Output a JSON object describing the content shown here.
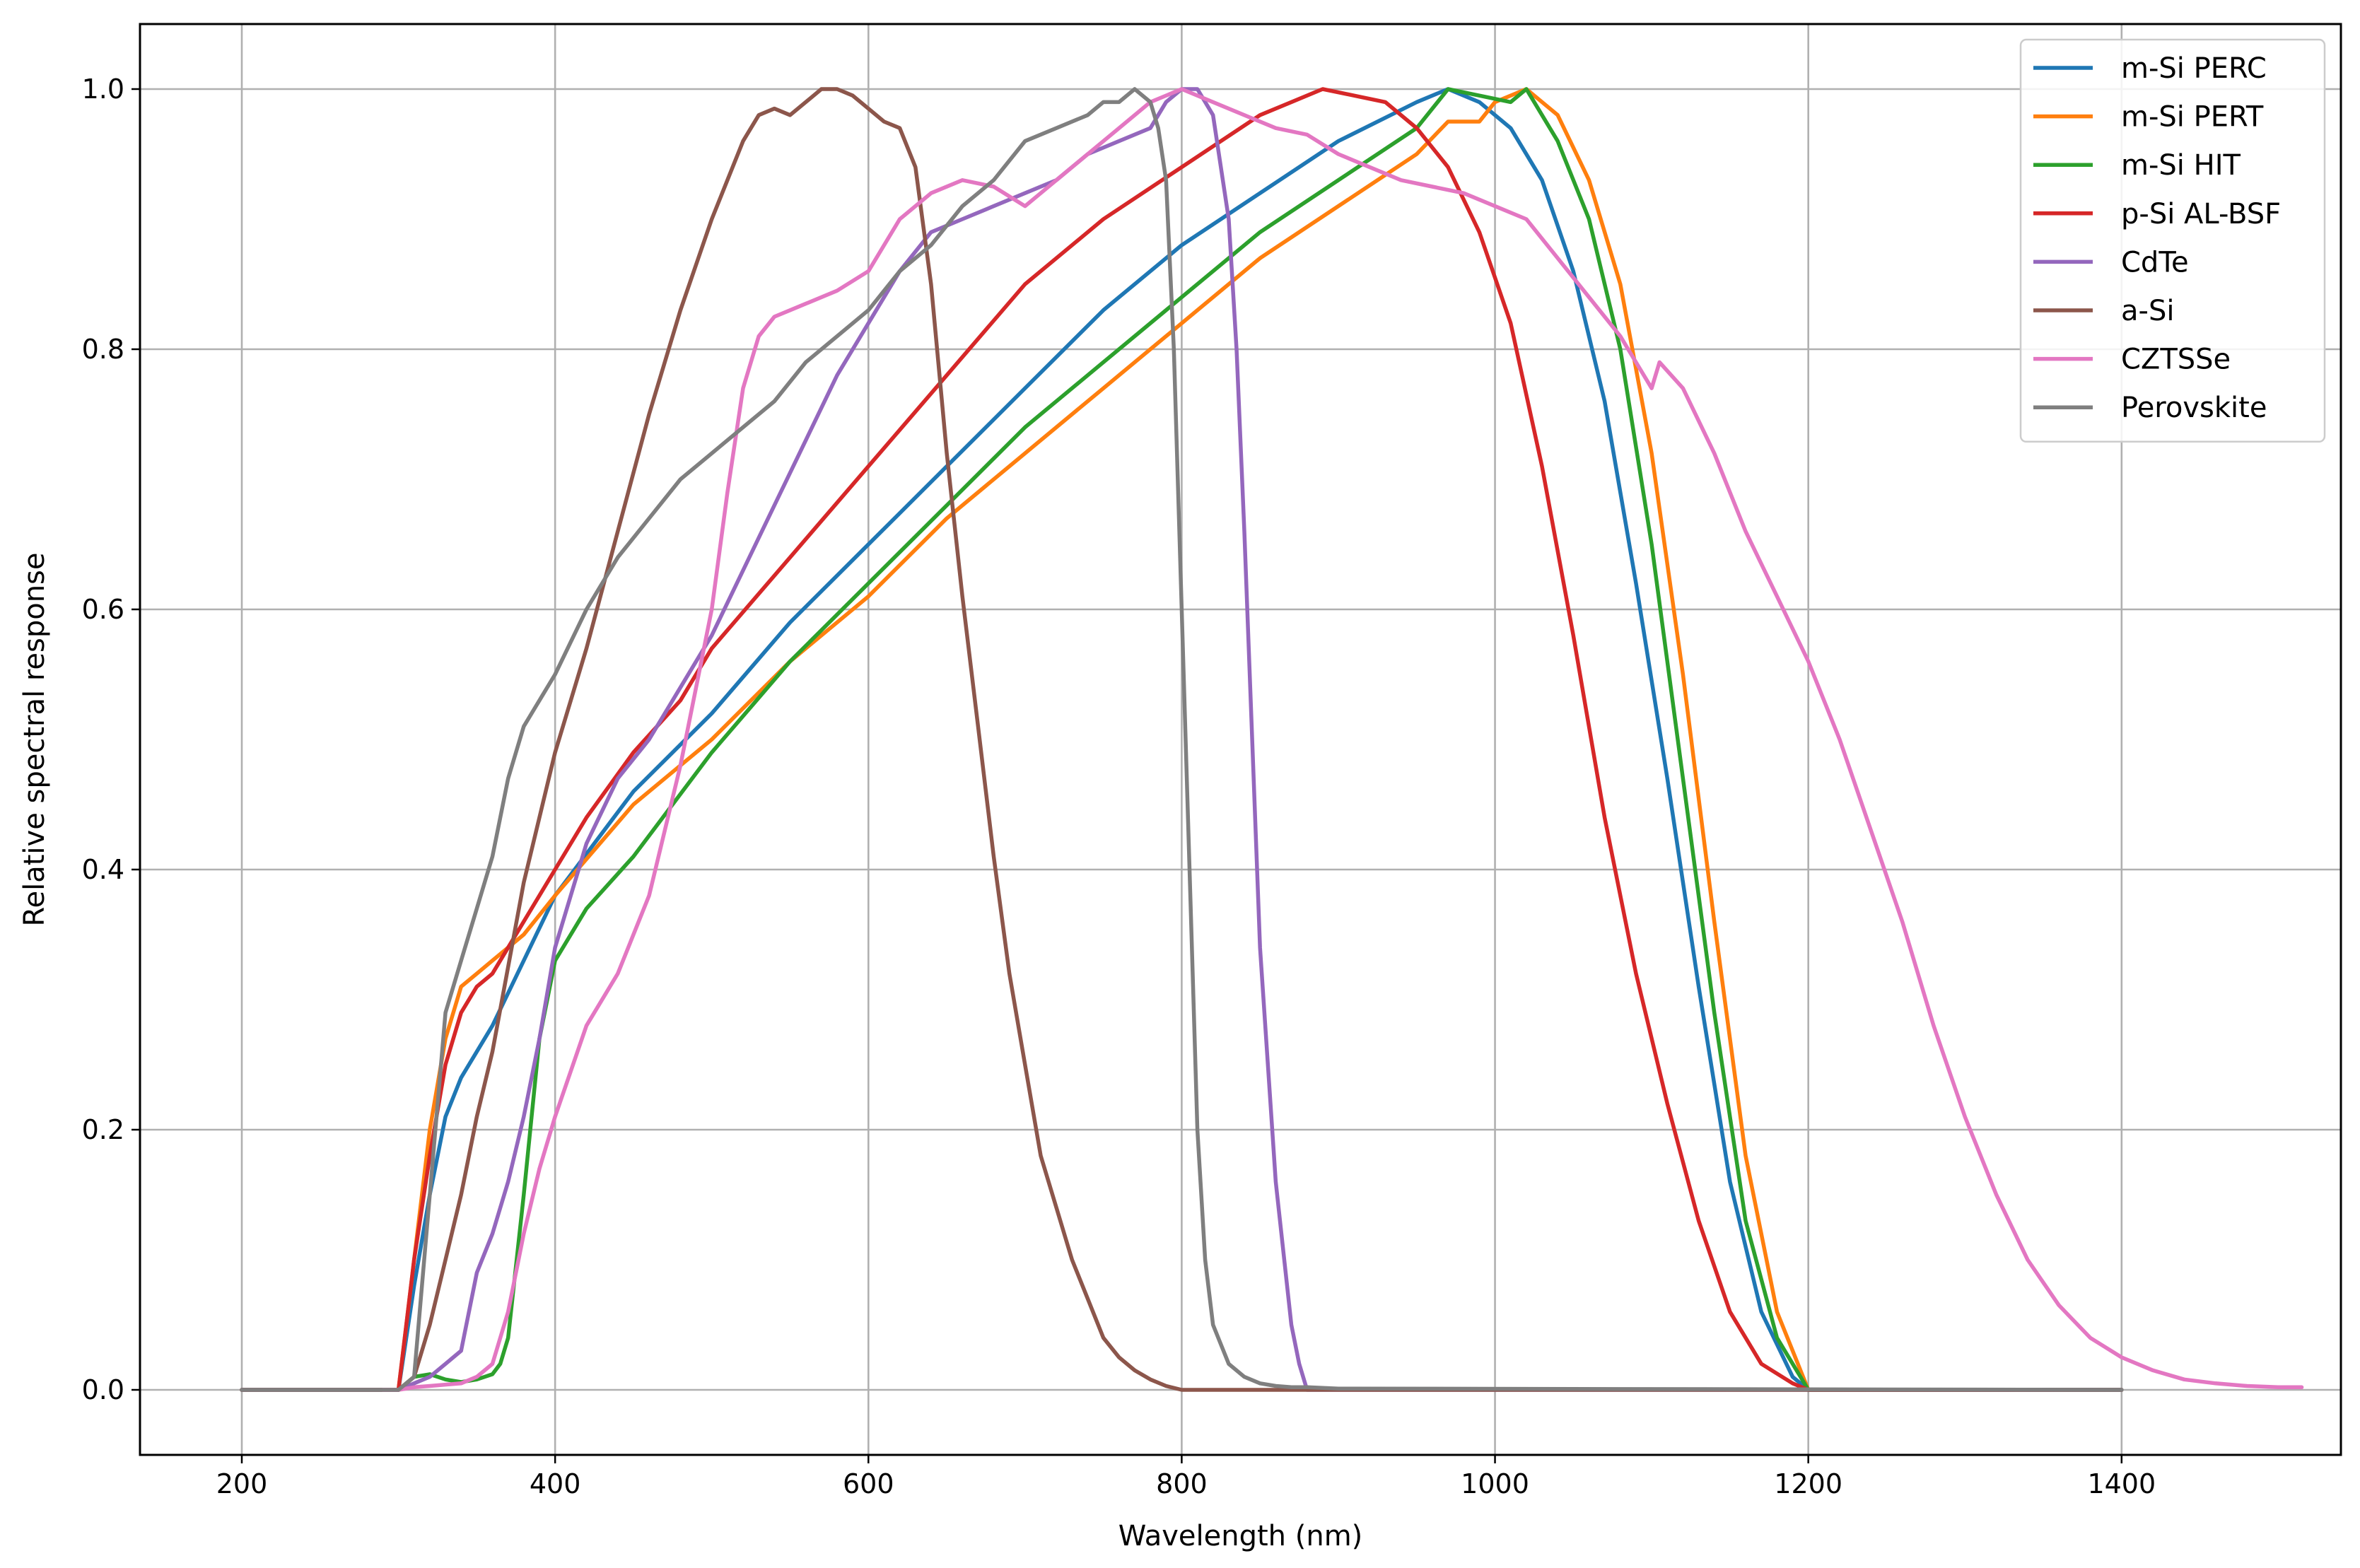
{
  "chart_data": {
    "type": "line",
    "title": "",
    "xlabel": "Wavelength (nm)",
    "ylabel": "Relative spectral response",
    "xlim": [
      135,
      1540
    ],
    "ylim": [
      -0.05,
      1.05
    ],
    "xticks": [
      200,
      400,
      600,
      800,
      1000,
      1200,
      1400
    ],
    "xtick_labels": [
      "200",
      "400",
      "600",
      "800",
      "1000",
      "1200",
      "1400"
    ],
    "yticks": [
      0.0,
      0.2,
      0.4,
      0.6,
      0.8,
      1.0
    ],
    "ytick_labels": [
      "0.0",
      "0.2",
      "0.4",
      "0.6",
      "0.8",
      "1.0"
    ],
    "grid": true,
    "legend_position": "top-right",
    "series": [
      {
        "name": "m-Si PERC",
        "color": "#1f77b4",
        "x": [
          200,
          290,
          300,
          310,
          320,
          330,
          340,
          350,
          360,
          380,
          400,
          450,
          500,
          550,
          600,
          650,
          700,
          750,
          800,
          850,
          900,
          950,
          970,
          990,
          1010,
          1030,
          1050,
          1070,
          1090,
          1110,
          1130,
          1150,
          1170,
          1190,
          1200,
          1400
        ],
        "y": [
          0,
          0,
          0,
          0.08,
          0.15,
          0.21,
          0.24,
          0.26,
          0.28,
          0.33,
          0.38,
          0.46,
          0.52,
          0.59,
          0.65,
          0.71,
          0.77,
          0.83,
          0.88,
          0.92,
          0.96,
          0.99,
          1.0,
          0.99,
          0.97,
          0.93,
          0.86,
          0.76,
          0.62,
          0.47,
          0.31,
          0.16,
          0.06,
          0.01,
          0,
          0
        ]
      },
      {
        "name": "m-Si PERT",
        "color": "#ff7f0e",
        "x": [
          200,
          290,
          300,
          305,
          310,
          320,
          330,
          340,
          350,
          360,
          380,
          400,
          450,
          500,
          550,
          600,
          650,
          700,
          750,
          800,
          850,
          900,
          950,
          970,
          990,
          1000,
          1020,
          1040,
          1060,
          1080,
          1100,
          1120,
          1140,
          1160,
          1180,
          1200,
          1400
        ],
        "y": [
          0,
          0,
          0,
          0.05,
          0.1,
          0.2,
          0.27,
          0.31,
          0.32,
          0.33,
          0.35,
          0.38,
          0.45,
          0.5,
          0.56,
          0.61,
          0.67,
          0.72,
          0.77,
          0.82,
          0.87,
          0.91,
          0.95,
          0.975,
          0.975,
          0.99,
          1.0,
          0.98,
          0.93,
          0.85,
          0.72,
          0.55,
          0.36,
          0.18,
          0.06,
          0,
          0
        ]
      },
      {
        "name": "m-Si HIT",
        "color": "#2ca02c",
        "x": [
          200,
          290,
          300,
          305,
          310,
          320,
          330,
          340,
          350,
          360,
          365,
          370,
          380,
          390,
          400,
          420,
          450,
          500,
          550,
          600,
          650,
          700,
          750,
          800,
          850,
          900,
          950,
          970,
          990,
          1010,
          1020,
          1040,
          1060,
          1080,
          1100,
          1120,
          1140,
          1160,
          1180,
          1200,
          1400
        ],
        "y": [
          0,
          0,
          0,
          0.005,
          0.01,
          0.012,
          0.008,
          0.006,
          0.008,
          0.012,
          0.02,
          0.04,
          0.15,
          0.27,
          0.33,
          0.37,
          0.41,
          0.49,
          0.56,
          0.62,
          0.68,
          0.74,
          0.79,
          0.84,
          0.89,
          0.93,
          0.97,
          1.0,
          0.995,
          0.99,
          1.0,
          0.96,
          0.9,
          0.8,
          0.65,
          0.47,
          0.29,
          0.13,
          0.04,
          0,
          0
        ]
      },
      {
        "name": "p-Si AL-BSF",
        "color": "#d62728",
        "x": [
          200,
          290,
          300,
          310,
          320,
          330,
          340,
          350,
          360,
          380,
          400,
          420,
          450,
          480,
          500,
          550,
          600,
          650,
          700,
          750,
          800,
          850,
          870,
          890,
          910,
          930,
          950,
          970,
          990,
          1010,
          1030,
          1050,
          1070,
          1090,
          1110,
          1130,
          1150,
          1170,
          1190,
          1200,
          1400
        ],
        "y": [
          0,
          0,
          0,
          0.1,
          0.18,
          0.25,
          0.29,
          0.31,
          0.32,
          0.36,
          0.4,
          0.44,
          0.49,
          0.53,
          0.57,
          0.64,
          0.71,
          0.78,
          0.85,
          0.9,
          0.94,
          0.98,
          0.99,
          1.0,
          0.995,
          0.99,
          0.97,
          0.94,
          0.89,
          0.82,
          0.71,
          0.58,
          0.44,
          0.32,
          0.22,
          0.13,
          0.06,
          0.02,
          0.005,
          0,
          0
        ]
      },
      {
        "name": "CdTe",
        "color": "#9467bd",
        "x": [
          200,
          290,
          300,
          310,
          320,
          330,
          340,
          345,
          350,
          360,
          370,
          380,
          390,
          400,
          420,
          440,
          460,
          480,
          500,
          520,
          540,
          560,
          580,
          600,
          620,
          640,
          660,
          680,
          700,
          720,
          740,
          760,
          780,
          790,
          800,
          810,
          820,
          830,
          835,
          840,
          845,
          850,
          860,
          870,
          875,
          880,
          900,
          1400
        ],
        "y": [
          0,
          0,
          0,
          0.005,
          0.01,
          0.02,
          0.03,
          0.06,
          0.09,
          0.12,
          0.16,
          0.21,
          0.27,
          0.34,
          0.42,
          0.47,
          0.5,
          0.54,
          0.58,
          0.63,
          0.68,
          0.73,
          0.78,
          0.82,
          0.86,
          0.89,
          0.9,
          0.91,
          0.92,
          0.93,
          0.95,
          0.96,
          0.97,
          0.99,
          1.0,
          1.0,
          0.98,
          0.9,
          0.8,
          0.66,
          0.5,
          0.34,
          0.16,
          0.05,
          0.02,
          0.0,
          0,
          0
        ]
      },
      {
        "name": "a-Si",
        "color": "#8c564b",
        "x": [
          200,
          290,
          300,
          310,
          320,
          330,
          340,
          350,
          360,
          380,
          400,
          420,
          440,
          460,
          480,
          500,
          520,
          530,
          540,
          550,
          560,
          570,
          580,
          590,
          600,
          610,
          620,
          630,
          640,
          650,
          660,
          670,
          680,
          690,
          700,
          710,
          720,
          730,
          740,
          750,
          760,
          770,
          780,
          790,
          800,
          1400
        ],
        "y": [
          0,
          0,
          0,
          0.01,
          0.05,
          0.1,
          0.15,
          0.21,
          0.26,
          0.39,
          0.49,
          0.57,
          0.66,
          0.75,
          0.83,
          0.9,
          0.96,
          0.98,
          0.985,
          0.98,
          0.99,
          1.0,
          1.0,
          0.995,
          0.985,
          0.975,
          0.97,
          0.94,
          0.85,
          0.72,
          0.61,
          0.51,
          0.41,
          0.32,
          0.25,
          0.18,
          0.14,
          0.1,
          0.07,
          0.04,
          0.025,
          0.015,
          0.008,
          0.003,
          0,
          0
        ]
      },
      {
        "name": "CZTSSe",
        "color": "#e377c2",
        "x": [
          290,
          300,
          310,
          320,
          340,
          350,
          360,
          370,
          380,
          390,
          400,
          420,
          440,
          460,
          480,
          500,
          510,
          520,
          530,
          540,
          550,
          560,
          580,
          600,
          620,
          640,
          660,
          680,
          700,
          720,
          740,
          760,
          780,
          800,
          820,
          840,
          860,
          880,
          900,
          920,
          940,
          960,
          980,
          1000,
          1020,
          1040,
          1060,
          1080,
          1100,
          1105,
          1120,
          1140,
          1160,
          1180,
          1200,
          1220,
          1240,
          1260,
          1280,
          1300,
          1320,
          1340,
          1360,
          1380,
          1400,
          1420,
          1440,
          1460,
          1480,
          1500,
          1515
        ],
        "y": [
          0,
          0,
          0.002,
          0.003,
          0.005,
          0.01,
          0.02,
          0.06,
          0.12,
          0.17,
          0.21,
          0.28,
          0.32,
          0.38,
          0.48,
          0.6,
          0.69,
          0.77,
          0.81,
          0.825,
          0.83,
          0.835,
          0.845,
          0.86,
          0.9,
          0.92,
          0.93,
          0.925,
          0.91,
          0.93,
          0.95,
          0.97,
          0.99,
          1.0,
          0.99,
          0.98,
          0.97,
          0.965,
          0.95,
          0.94,
          0.93,
          0.925,
          0.92,
          0.91,
          0.9,
          0.87,
          0.84,
          0.81,
          0.77,
          0.79,
          0.77,
          0.72,
          0.66,
          0.61,
          0.56,
          0.5,
          0.43,
          0.36,
          0.28,
          0.21,
          0.15,
          0.1,
          0.065,
          0.04,
          0.025,
          0.015,
          0.008,
          0.005,
          0.003,
          0.002,
          0.002
        ]
      },
      {
        "name": "Perovskite",
        "color": "#7f7f7f",
        "x": [
          200,
          290,
          300,
          310,
          320,
          330,
          340,
          350,
          360,
          370,
          380,
          400,
          420,
          440,
          460,
          480,
          500,
          520,
          540,
          560,
          580,
          600,
          620,
          640,
          660,
          680,
          700,
          720,
          740,
          750,
          760,
          770,
          780,
          785,
          790,
          795,
          800,
          805,
          810,
          815,
          820,
          830,
          840,
          850,
          860,
          870,
          880,
          900,
          1400
        ],
        "y": [
          0,
          0,
          0,
          0.01,
          0.15,
          0.29,
          0.33,
          0.37,
          0.41,
          0.47,
          0.51,
          0.55,
          0.6,
          0.64,
          0.67,
          0.7,
          0.72,
          0.74,
          0.76,
          0.79,
          0.81,
          0.83,
          0.86,
          0.88,
          0.91,
          0.93,
          0.96,
          0.97,
          0.98,
          0.99,
          0.99,
          1.0,
          0.99,
          0.97,
          0.93,
          0.8,
          0.6,
          0.4,
          0.2,
          0.1,
          0.05,
          0.02,
          0.01,
          0.005,
          0.003,
          0.002,
          0.002,
          0.001,
          0
        ]
      }
    ]
  }
}
